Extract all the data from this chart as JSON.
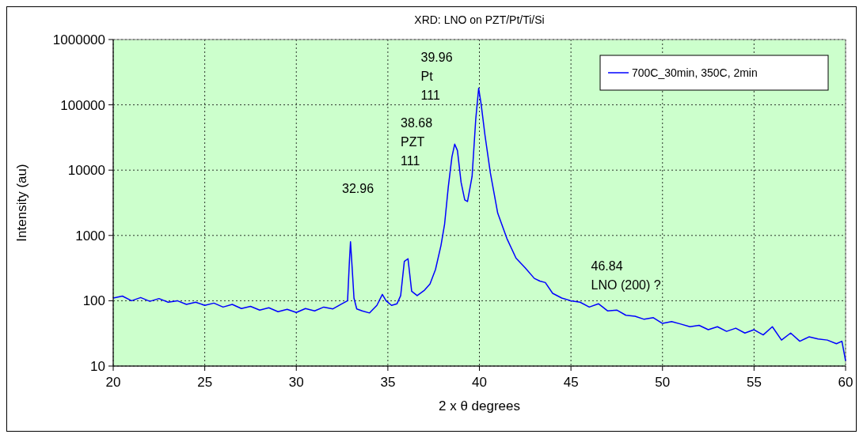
{
  "chart_data": {
    "type": "line",
    "title": "XRD: LNO on PZT/Pt/Ti/Si",
    "xlabel": "2 x θ degrees",
    "ylabel": "Intensity (au)",
    "log": "y",
    "grid": true,
    "legend": "top right",
    "marker": "none",
    "line_style": "solid",
    "xlim": [
      20,
      60
    ],
    "xticks": [
      20,
      25,
      30,
      35,
      40,
      45,
      50,
      55,
      60
    ],
    "ylim": [
      10,
      1000000
    ],
    "yticks": [
      10,
      100,
      1000,
      10000,
      100000,
      1000000
    ],
    "series": [
      {
        "name": "700C_30min, 350C, 2min",
        "color": "#0000ff",
        "x": [
          20,
          20.5,
          21,
          21.5,
          22,
          22.5,
          23,
          23.5,
          24,
          24.5,
          25,
          25.5,
          26,
          26.5,
          27,
          27.5,
          28,
          28.5,
          29,
          29.5,
          30,
          30.5,
          31,
          31.5,
          32,
          32.5,
          32.8,
          32.9,
          32.96,
          33.05,
          33.15,
          33.3,
          33.6,
          34,
          34.4,
          34.7,
          34.9,
          35.2,
          35.5,
          35.7,
          35.9,
          36.1,
          36.3,
          36.6,
          37,
          37.3,
          37.6,
          37.9,
          38.1,
          38.3,
          38.5,
          38.65,
          38.8,
          39,
          39.2,
          39.35,
          39.6,
          39.8,
          39.96,
          40.1,
          40.3,
          40.6,
          41,
          41.5,
          42,
          42.5,
          43,
          43.3,
          43.6,
          44,
          44.5,
          45,
          45.5,
          46,
          46.5,
          47,
          47.5,
          48,
          48.5,
          49,
          49.5,
          50,
          50.5,
          51,
          51.5,
          52,
          52.5,
          53,
          53.5,
          54,
          54.5,
          55,
          55.5,
          56,
          56.5,
          57,
          57.5,
          58,
          58.5,
          59,
          59.5,
          59.8,
          60
        ],
        "values": [
          110,
          118,
          100,
          112,
          98,
          108,
          95,
          100,
          88,
          95,
          85,
          92,
          80,
          88,
          76,
          82,
          72,
          78,
          68,
          74,
          66,
          76,
          70,
          80,
          75,
          90,
          100,
          400,
          800,
          320,
          110,
          75,
          70,
          65,
          85,
          125,
          100,
          85,
          90,
          120,
          400,
          440,
          140,
          120,
          145,
          180,
          300,
          700,
          1500,
          5500,
          16000,
          25000,
          20000,
          6500,
          3500,
          3300,
          8000,
          60000,
          180000,
          100000,
          35000,
          9000,
          2200,
          900,
          450,
          320,
          220,
          200,
          190,
          130,
          110,
          100,
          95,
          80,
          90,
          70,
          72,
          60,
          58,
          52,
          55,
          45,
          48,
          44,
          40,
          42,
          36,
          40,
          34,
          38,
          32,
          36,
          30,
          40,
          25,
          32,
          24,
          28,
          26,
          25,
          22,
          24,
          12
        ]
      }
    ],
    "annotations": [
      "39.96\nPt\n111",
      "38.68\nPZT\n111",
      "32.96",
      "46.84\nLNO (200) ?"
    ]
  }
}
